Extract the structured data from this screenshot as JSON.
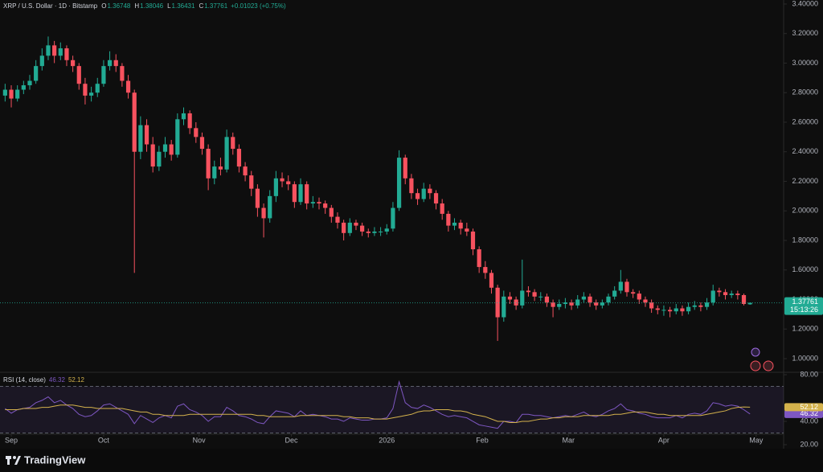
{
  "header": {
    "symbol": "XRP / U.S. Dollar · 1D · Bitstamp",
    "ohlc_labels": [
      "O",
      "H",
      "L",
      "C"
    ],
    "change": "+0.01023 (+0.75%)"
  },
  "footer": {
    "brand": "TradingView"
  },
  "chart_data": [
    {
      "type": "candlestick",
      "up_color": "#22ab94",
      "down_color": "#f7525f",
      "candles": [
        [
          2.78,
          2.86,
          2.74,
          2.82
        ],
        [
          2.82,
          2.85,
          2.7,
          2.76
        ],
        [
          2.76,
          2.85,
          2.74,
          2.82
        ],
        [
          2.82,
          2.88,
          2.79,
          2.85
        ],
        [
          2.85,
          2.92,
          2.82,
          2.88
        ],
        [
          2.88,
          3.02,
          2.86,
          2.98
        ],
        [
          2.98,
          3.1,
          2.95,
          3.05
        ],
        [
          3.05,
          3.18,
          3.02,
          3.12
        ],
        [
          3.12,
          3.15,
          3.0,
          3.05
        ],
        [
          3.05,
          3.14,
          3.02,
          3.1
        ],
        [
          3.1,
          3.12,
          2.98,
          3.02
        ],
        [
          3.02,
          3.05,
          2.94,
          2.98
        ],
        [
          2.98,
          3.0,
          2.82,
          2.86
        ],
        [
          2.86,
          2.9,
          2.72,
          2.78
        ],
        [
          2.78,
          2.84,
          2.74,
          2.8
        ],
        [
          2.8,
          2.9,
          2.77,
          2.86
        ],
        [
          2.86,
          3.02,
          2.84,
          2.98
        ],
        [
          2.98,
          3.08,
          2.95,
          3.02
        ],
        [
          3.02,
          3.06,
          2.94,
          2.98
        ],
        [
          2.98,
          3.0,
          2.84,
          2.88
        ],
        [
          2.88,
          2.92,
          2.76,
          2.8
        ],
        [
          2.8,
          2.82,
          1.58,
          2.4
        ],
        [
          2.4,
          2.64,
          2.35,
          2.58
        ],
        [
          2.58,
          2.62,
          2.4,
          2.45
        ],
        [
          2.45,
          2.5,
          2.26,
          2.3
        ],
        [
          2.3,
          2.44,
          2.27,
          2.4
        ],
        [
          2.4,
          2.5,
          2.36,
          2.45
        ],
        [
          2.45,
          2.48,
          2.34,
          2.38
        ],
        [
          2.38,
          2.66,
          2.36,
          2.62
        ],
        [
          2.62,
          2.7,
          2.58,
          2.66
        ],
        [
          2.66,
          2.68,
          2.52,
          2.56
        ],
        [
          2.56,
          2.6,
          2.46,
          2.5
        ],
        [
          2.5,
          2.53,
          2.38,
          2.42
        ],
        [
          2.42,
          2.45,
          2.14,
          2.22
        ],
        [
          2.22,
          2.34,
          2.18,
          2.3
        ],
        [
          2.3,
          2.36,
          2.24,
          2.28
        ],
        [
          2.28,
          2.55,
          2.26,
          2.5
        ],
        [
          2.5,
          2.53,
          2.38,
          2.42
        ],
        [
          2.42,
          2.45,
          2.26,
          2.3
        ],
        [
          2.3,
          2.33,
          2.2,
          2.24
        ],
        [
          2.24,
          2.27,
          2.1,
          2.15
        ],
        [
          2.15,
          2.18,
          1.96,
          2.02
        ],
        [
          2.02,
          2.05,
          1.82,
          1.95
        ],
        [
          1.95,
          2.14,
          1.92,
          2.1
        ],
        [
          2.1,
          2.27,
          2.06,
          2.22
        ],
        [
          2.22,
          2.26,
          2.16,
          2.2
        ],
        [
          2.2,
          2.24,
          2.14,
          2.18
        ],
        [
          2.18,
          2.2,
          2.02,
          2.06
        ],
        [
          2.06,
          2.22,
          2.04,
          2.18
        ],
        [
          2.18,
          2.2,
          2.01,
          2.05
        ],
        [
          2.05,
          2.1,
          2.02,
          2.06
        ],
        [
          2.06,
          2.09,
          2.01,
          2.05
        ],
        [
          2.05,
          2.07,
          1.98,
          2.02
        ],
        [
          2.02,
          2.04,
          1.92,
          1.96
        ],
        [
          1.96,
          1.99,
          1.88,
          1.92
        ],
        [
          1.92,
          1.94,
          1.8,
          1.85
        ],
        [
          1.85,
          1.95,
          1.83,
          1.92
        ],
        [
          1.92,
          1.94,
          1.87,
          1.9
        ],
        [
          1.9,
          1.92,
          1.83,
          1.86
        ],
        [
          1.86,
          1.88,
          1.82,
          1.85
        ],
        [
          1.85,
          1.89,
          1.83,
          1.86
        ],
        [
          1.86,
          1.89,
          1.83,
          1.86
        ],
        [
          1.86,
          1.91,
          1.84,
          1.88
        ],
        [
          1.88,
          2.06,
          1.86,
          2.02
        ],
        [
          2.02,
          2.41,
          2.0,
          2.36
        ],
        [
          2.36,
          2.38,
          2.18,
          2.22
        ],
        [
          2.22,
          2.25,
          2.08,
          2.12
        ],
        [
          2.12,
          2.15,
          2.04,
          2.08
        ],
        [
          2.08,
          2.19,
          2.06,
          2.15
        ],
        [
          2.15,
          2.18,
          2.08,
          2.12
        ],
        [
          2.12,
          2.14,
          2.01,
          2.05
        ],
        [
          2.05,
          2.08,
          1.94,
          1.98
        ],
        [
          1.98,
          2.0,
          1.86,
          1.9
        ],
        [
          1.9,
          1.95,
          1.87,
          1.92
        ],
        [
          1.92,
          1.94,
          1.84,
          1.88
        ],
        [
          1.88,
          1.92,
          1.83,
          1.86
        ],
        [
          1.86,
          1.88,
          1.7,
          1.74
        ],
        [
          1.74,
          1.76,
          1.58,
          1.62
        ],
        [
          1.62,
          1.66,
          1.54,
          1.58
        ],
        [
          1.58,
          1.6,
          1.44,
          1.48
        ],
        [
          1.48,
          1.5,
          1.12,
          1.28
        ],
        [
          1.28,
          1.46,
          1.25,
          1.42
        ],
        [
          1.42,
          1.45,
          1.37,
          1.4
        ],
        [
          1.4,
          1.42,
          1.33,
          1.36
        ],
        [
          1.36,
          1.67,
          1.34,
          1.46
        ],
        [
          1.46,
          1.49,
          1.42,
          1.45
        ],
        [
          1.45,
          1.47,
          1.39,
          1.42
        ],
        [
          1.42,
          1.45,
          1.39,
          1.42
        ],
        [
          1.42,
          1.44,
          1.35,
          1.38
        ],
        [
          1.38,
          1.4,
          1.28,
          1.35
        ],
        [
          1.35,
          1.4,
          1.33,
          1.37
        ],
        [
          1.37,
          1.41,
          1.34,
          1.38
        ],
        [
          1.38,
          1.4,
          1.33,
          1.36
        ],
        [
          1.36,
          1.43,
          1.34,
          1.4
        ],
        [
          1.4,
          1.45,
          1.38,
          1.42
        ],
        [
          1.42,
          1.44,
          1.35,
          1.38
        ],
        [
          1.38,
          1.4,
          1.33,
          1.36
        ],
        [
          1.36,
          1.4,
          1.34,
          1.38
        ],
        [
          1.38,
          1.44,
          1.36,
          1.42
        ],
        [
          1.42,
          1.49,
          1.4,
          1.46
        ],
        [
          1.46,
          1.6,
          1.44,
          1.52
        ],
        [
          1.52,
          1.54,
          1.42,
          1.45
        ],
        [
          1.45,
          1.47,
          1.41,
          1.44
        ],
        [
          1.44,
          1.46,
          1.37,
          1.4
        ],
        [
          1.4,
          1.42,
          1.35,
          1.38
        ],
        [
          1.38,
          1.4,
          1.31,
          1.34
        ],
        [
          1.34,
          1.36,
          1.3,
          1.33
        ],
        [
          1.33,
          1.36,
          1.29,
          1.33
        ],
        [
          1.33,
          1.35,
          1.28,
          1.32
        ],
        [
          1.32,
          1.37,
          1.3,
          1.34
        ],
        [
          1.34,
          1.36,
          1.29,
          1.32
        ],
        [
          1.32,
          1.38,
          1.3,
          1.35
        ],
        [
          1.35,
          1.39,
          1.33,
          1.36
        ],
        [
          1.36,
          1.38,
          1.32,
          1.35
        ],
        [
          1.35,
          1.41,
          1.33,
          1.38
        ],
        [
          1.38,
          1.5,
          1.36,
          1.46
        ],
        [
          1.46,
          1.48,
          1.42,
          1.45
        ],
        [
          1.45,
          1.47,
          1.4,
          1.43
        ],
        [
          1.43,
          1.46,
          1.41,
          1.44
        ],
        [
          1.44,
          1.46,
          1.4,
          1.43
        ],
        [
          1.43,
          1.44,
          1.36,
          1.37
        ],
        [
          1.36748,
          1.38046,
          1.36431,
          1.37761
        ]
      ],
      "xlim": [
        -0.83,
        126.46
      ],
      "xticks": [
        {
          "value": 1,
          "label": "Sep"
        },
        {
          "value": 16,
          "label": "Oct"
        },
        {
          "value": 31.5,
          "label": "Nov"
        },
        {
          "value": 46.5,
          "label": "Dec"
        },
        {
          "value": 62,
          "label": "2026"
        },
        {
          "value": 77.5,
          "label": "Feb"
        },
        {
          "value": 91.5,
          "label": "Mar"
        },
        {
          "value": 107,
          "label": "Apr"
        },
        {
          "value": 122,
          "label": "May"
        }
      ],
      "ylim": [
        0.9075,
        3.427
      ],
      "yticks": [
        {
          "value": 1.0,
          "label": "1.00000"
        },
        {
          "value": 1.2,
          "label": "1.20000"
        },
        {
          "value": 1.4,
          "label": "1.40000"
        },
        {
          "value": 1.6,
          "label": "1.60000"
        },
        {
          "value": 1.8,
          "label": "1.80000"
        },
        {
          "value": 2.0,
          "label": "2.00000"
        },
        {
          "value": 2.2,
          "label": "2.20000"
        },
        {
          "value": 2.4,
          "label": "2.40000"
        },
        {
          "value": 2.6,
          "label": "2.60000"
        },
        {
          "value": 2.8,
          "label": "2.80000"
        },
        {
          "value": 3.0,
          "label": "3.00000"
        },
        {
          "value": 3.2,
          "label": "3.20000"
        },
        {
          "value": 3.4,
          "label": "3.40000"
        }
      ],
      "countdown": "15:13:26",
      "grid": false
    },
    {
      "type": "line",
      "title": "RSI (14, close)",
      "series": [
        {
          "color": "#7e57c2",
          "values": [
            51,
            47,
            50,
            51,
            52,
            56,
            58,
            61,
            56,
            58,
            54,
            51,
            46,
            44,
            45,
            49,
            54,
            55,
            52,
            49,
            46,
            38,
            45,
            42,
            39,
            43,
            45,
            43,
            53,
            55,
            50,
            48,
            45,
            40,
            44,
            44,
            52,
            49,
            45,
            44,
            42,
            39,
            38,
            44,
            49,
            48,
            47,
            44,
            49,
            45,
            46,
            45,
            44,
            42,
            42,
            40,
            43,
            42,
            41,
            41,
            42,
            42,
            43,
            51,
            74,
            56,
            52,
            51,
            54,
            52,
            49,
            46,
            44,
            45,
            44,
            43,
            40,
            37,
            36,
            35,
            34,
            40,
            40,
            39,
            46,
            46,
            45,
            45,
            44,
            43,
            44,
            45,
            44,
            46,
            48,
            45,
            44,
            46,
            49,
            51,
            55,
            50,
            49,
            47,
            46,
            44,
            43,
            43,
            43,
            45,
            43,
            46,
            47,
            46,
            49,
            56,
            55,
            53,
            54,
            53,
            50,
            46.32
          ]
        },
        {
          "color": "#d4b24c",
          "values": [
            50,
            50,
            50,
            51,
            51,
            51,
            52,
            52,
            53,
            54,
            54,
            54,
            53,
            52,
            52,
            51,
            51,
            51,
            51,
            51,
            50,
            49,
            48,
            48,
            46,
            46,
            45,
            45,
            45,
            45,
            46,
            46,
            46,
            46,
            46,
            46,
            46,
            46,
            46,
            46,
            46,
            45,
            45,
            44,
            44,
            44,
            44,
            44,
            45,
            45,
            45,
            45,
            45,
            45,
            45,
            44,
            44,
            43,
            43,
            43,
            42,
            42,
            42,
            43,
            44,
            45,
            46,
            48,
            49,
            49,
            50,
            50,
            50,
            49,
            49,
            48,
            46,
            45,
            44,
            42,
            40,
            40,
            39,
            39,
            40,
            40,
            41,
            42,
            42,
            43,
            43,
            44,
            44,
            44,
            45,
            45,
            45,
            45,
            45,
            46,
            46,
            47,
            48,
            48,
            48,
            47,
            46,
            46,
            45,
            45,
            45,
            45,
            45,
            45,
            46,
            47,
            48,
            49,
            51,
            52,
            52.3,
            52.12
          ]
        }
      ],
      "xlim": [
        -0.83,
        126.46
      ],
      "ylim": [
        28.97,
        82.07
      ],
      "yticks": [
        {
          "value": 80,
          "label": "80.00"
        },
        {
          "value": 40,
          "label": "40.00"
        },
        {
          "value": 20,
          "label": "20.00"
        }
      ],
      "band": [
        30,
        70
      ],
      "band_color": "#7e57c2"
    }
  ]
}
